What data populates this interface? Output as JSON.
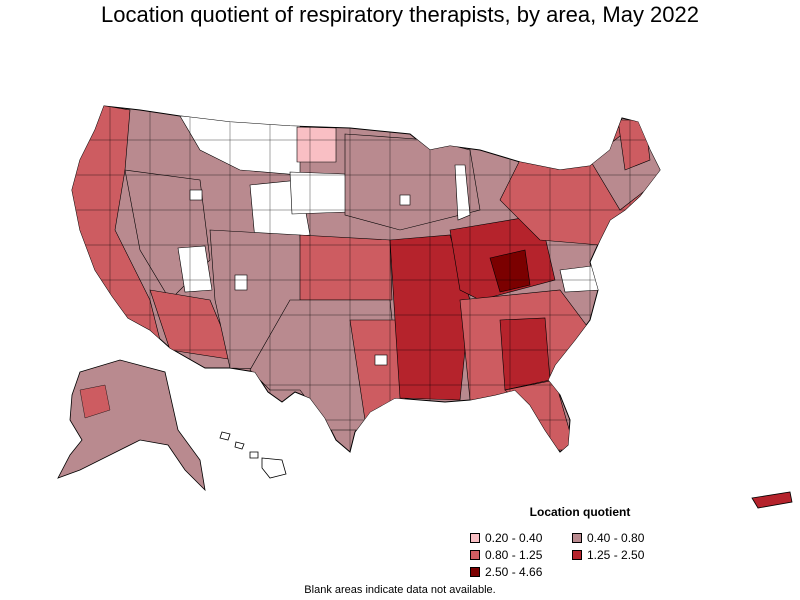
{
  "title": "Location quotient of respiratory therapists, by area, May 2022",
  "legend": {
    "title": "Location quotient",
    "items": [
      {
        "label": "0.20 - 0.40",
        "color": "#f9bfc4"
      },
      {
        "label": "0.40 - 0.80",
        "color": "#b98a8f"
      },
      {
        "label": "0.80 - 1.25",
        "color": "#cd5c61"
      },
      {
        "label": "1.25 - 2.50",
        "color": "#b5232c"
      },
      {
        "label": "2.50 - 4.66",
        "color": "#7b0000"
      }
    ]
  },
  "note": "Blank areas indicate data not available.",
  "colors": {
    "outline": "#000000",
    "blank": "#ffffff"
  }
}
